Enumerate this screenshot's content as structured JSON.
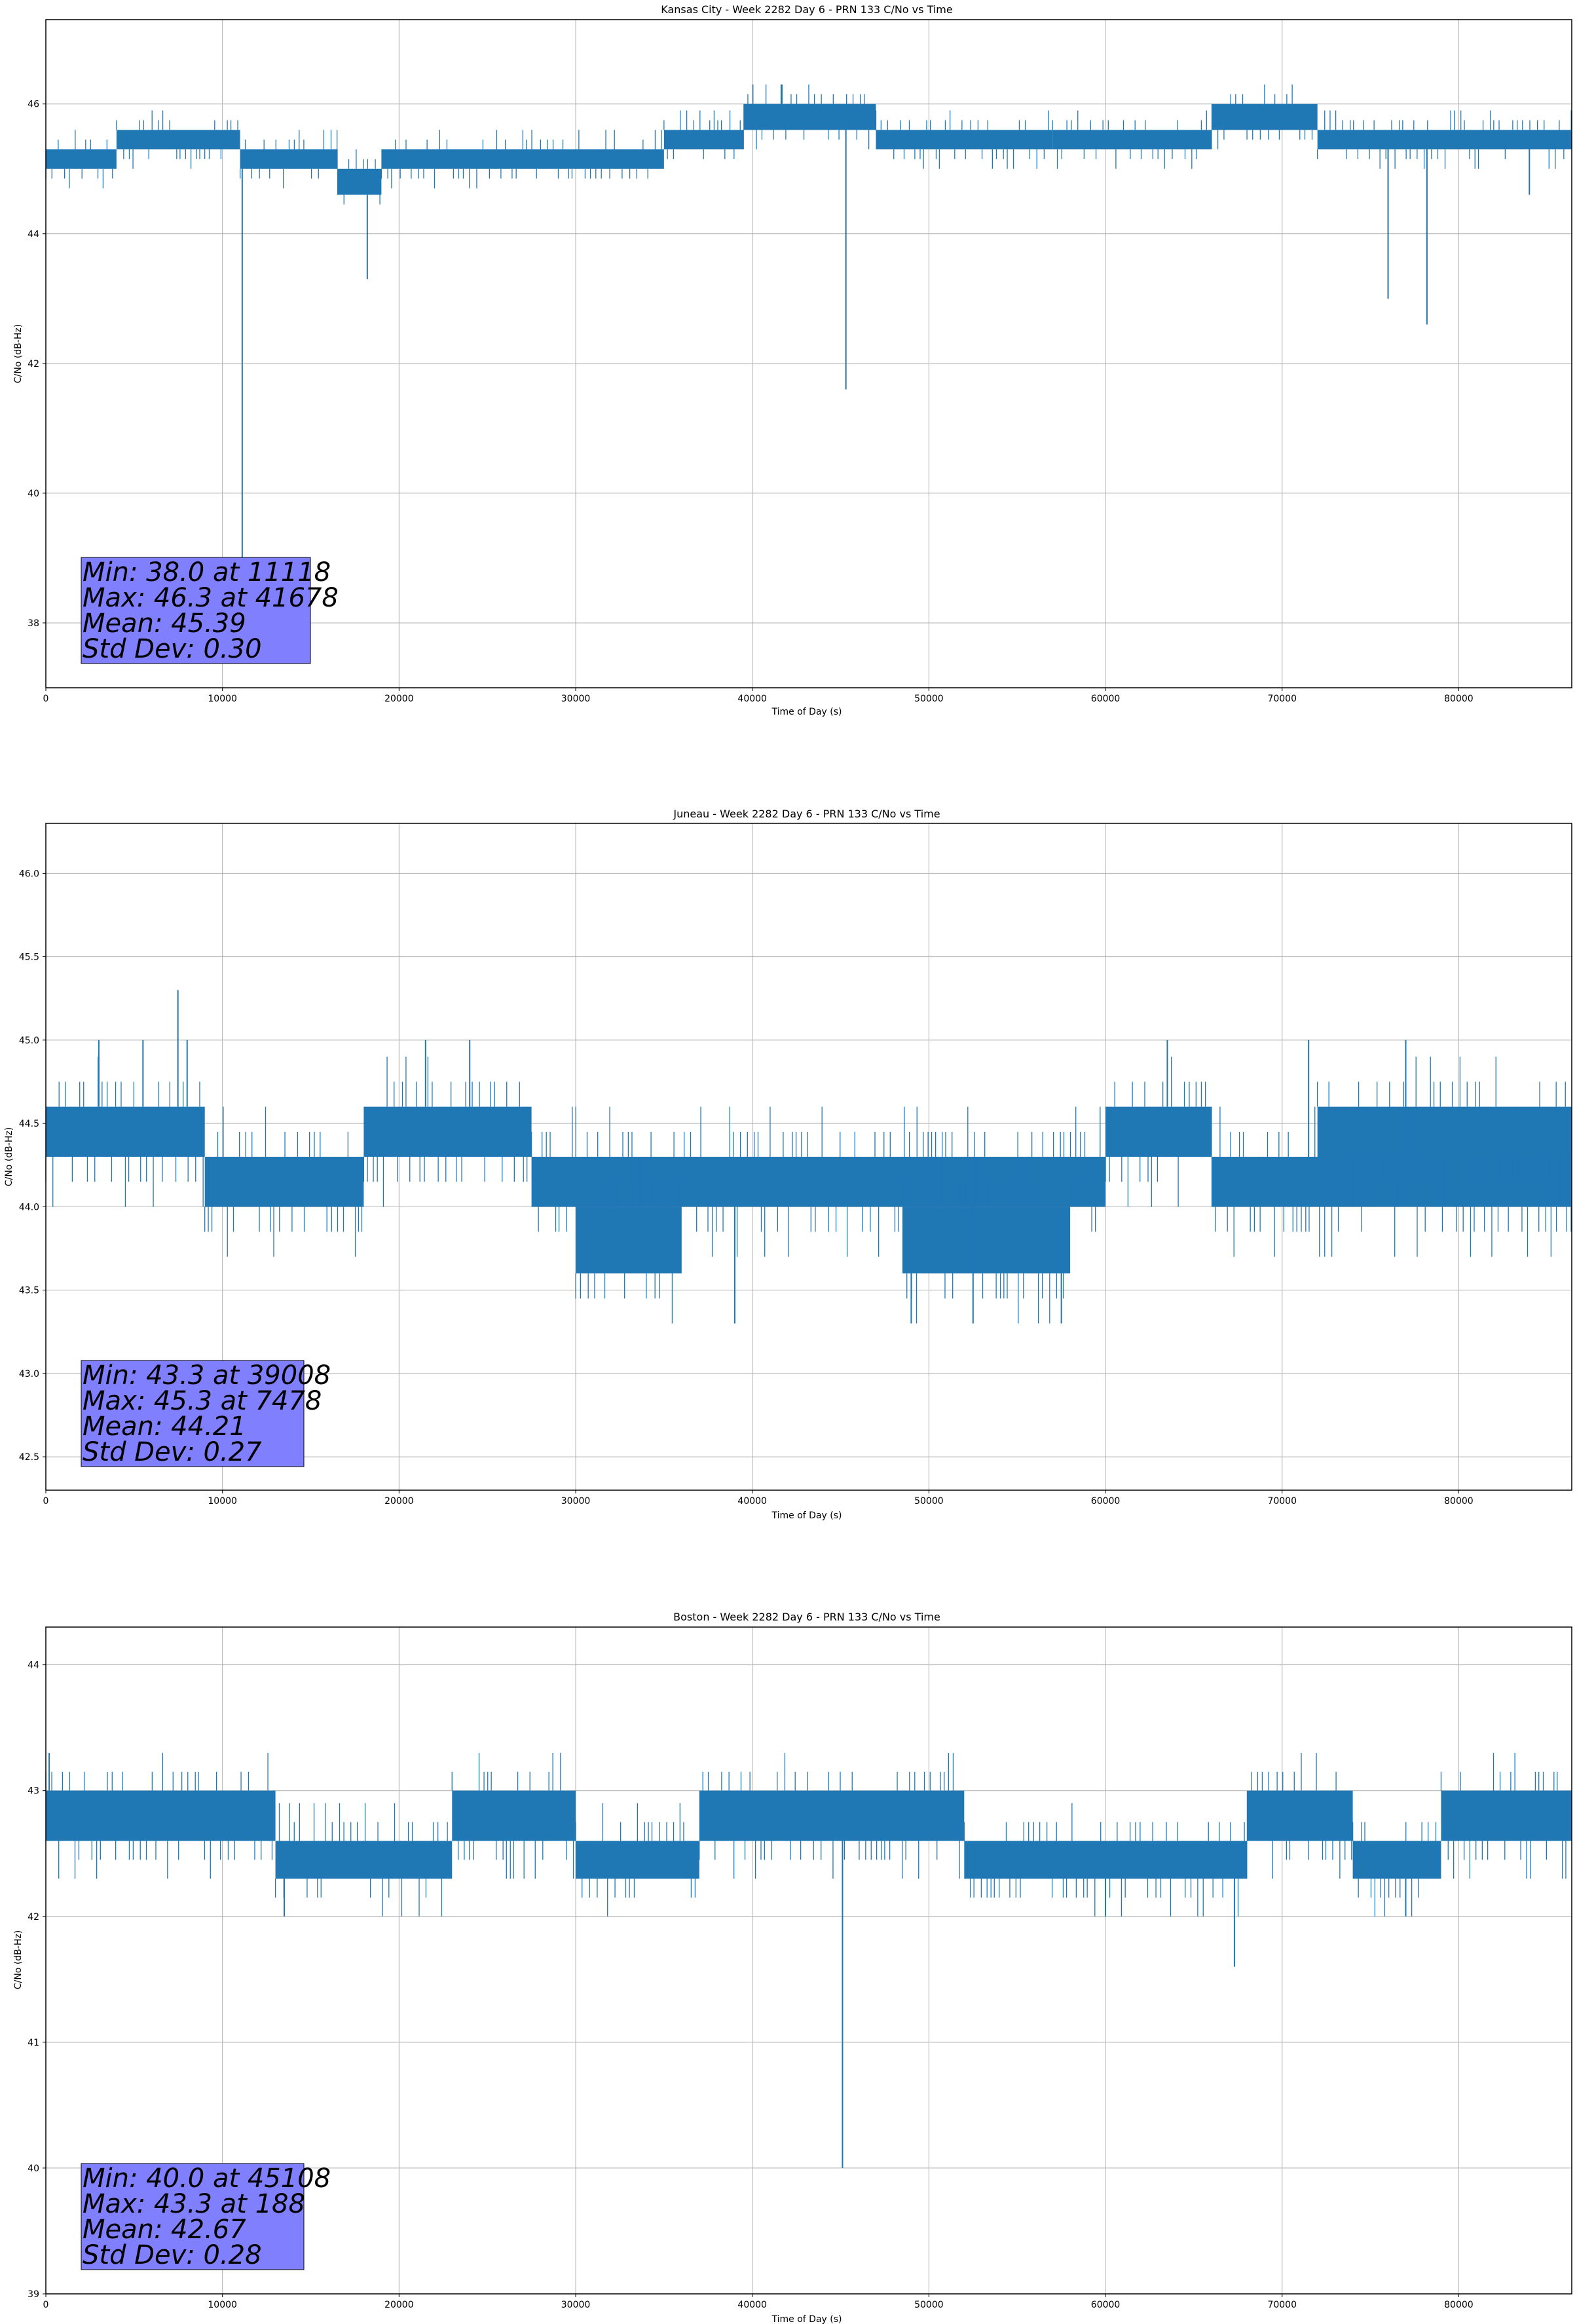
{
  "figure": {
    "colors": {
      "line": "#1f77b4",
      "grid": "#b0b0b0",
      "axes": "#000000",
      "stats_box_fill": "#8080ff",
      "background": "#ffffff"
    }
  },
  "chart_data": [
    {
      "type": "line",
      "title": "Kansas City - Week 2282 Day 6 - PRN 133 C/No vs Time",
      "xlabel": "Time of Day (s)",
      "ylabel": "C/No (dB-Hz)",
      "xlim": [
        0,
        86400
      ],
      "ylim": [
        37.0,
        47.3
      ],
      "xticks": [
        0,
        10000,
        20000,
        30000,
        40000,
        50000,
        60000,
        70000,
        80000
      ],
      "xtick_labels": [
        "0",
        "10000",
        "20000",
        "30000",
        "40000",
        "50000",
        "60000",
        "70000",
        "80000"
      ],
      "yticks": [
        38,
        40,
        42,
        44,
        46
      ],
      "ytick_labels": [
        "38",
        "40",
        "42",
        "44",
        "46"
      ],
      "grid": true,
      "series": [
        {
          "name": "C/No",
          "band": [
            {
              "x0": 0,
              "x1": 4000,
              "lo": 45.0,
              "hi": 45.3
            },
            {
              "x0": 4000,
              "x1": 11000,
              "lo": 45.3,
              "hi": 45.6
            },
            {
              "x0": 11000,
              "x1": 16500,
              "lo": 45.0,
              "hi": 45.3
            },
            {
              "x0": 16500,
              "x1": 19000,
              "lo": 44.6,
              "hi": 45.0
            },
            {
              "x0": 19000,
              "x1": 35000,
              "lo": 45.0,
              "hi": 45.3
            },
            {
              "x0": 35000,
              "x1": 39500,
              "lo": 45.3,
              "hi": 45.6
            },
            {
              "x0": 39500,
              "x1": 47000,
              "lo": 45.6,
              "hi": 46.0
            },
            {
              "x0": 47000,
              "x1": 57000,
              "lo": 45.3,
              "hi": 45.6
            },
            {
              "x0": 57000,
              "x1": 66000,
              "lo": 45.3,
              "hi": 45.6
            },
            {
              "x0": 66000,
              "x1": 72000,
              "lo": 45.6,
              "hi": 46.0
            },
            {
              "x0": 72000,
              "x1": 86400,
              "lo": 45.3,
              "hi": 45.6
            }
          ],
          "spikes": [
            {
              "x": 11118,
              "y": 38.0
            },
            {
              "x": 18200,
              "y": 43.3
            },
            {
              "x": 41678,
              "y": 46.3
            },
            {
              "x": 45300,
              "y": 41.6
            },
            {
              "x": 76000,
              "y": 43.0
            },
            {
              "x": 78200,
              "y": 42.6
            },
            {
              "x": 84000,
              "y": 44.6
            }
          ]
        }
      ],
      "stats": {
        "min": "Min: 38.0 at 11118",
        "max": "Max: 46.3 at 41678",
        "mean": "Mean: 45.39",
        "std": "Std Dev: 0.30"
      }
    },
    {
      "type": "line",
      "title": "Juneau - Week 2282 Day 6 - PRN 133 C/No vs Time",
      "xlabel": "Time of Day (s)",
      "ylabel": "C/No (dB-Hz)",
      "xlim": [
        0,
        86400
      ],
      "ylim": [
        42.3,
        46.3
      ],
      "xticks": [
        0,
        10000,
        20000,
        30000,
        40000,
        50000,
        60000,
        70000,
        80000
      ],
      "xtick_labels": [
        "0",
        "10000",
        "20000",
        "30000",
        "40000",
        "50000",
        "60000",
        "70000",
        "80000"
      ],
      "yticks": [
        42.5,
        43.0,
        43.5,
        44.0,
        44.5,
        45.0,
        45.5,
        46.0
      ],
      "ytick_labels": [
        "42.5",
        "43.0",
        "43.5",
        "44.0",
        "44.5",
        "45.0",
        "45.5",
        "46.0"
      ],
      "grid": true,
      "series": [
        {
          "name": "C/No",
          "band": [
            {
              "x0": 0,
              "x1": 9000,
              "lo": 44.3,
              "hi": 44.6
            },
            {
              "x0": 9000,
              "x1": 18000,
              "lo": 44.0,
              "hi": 44.3
            },
            {
              "x0": 18000,
              "x1": 27500,
              "lo": 44.3,
              "hi": 44.6
            },
            {
              "x0": 27500,
              "x1": 60000,
              "lo": 44.0,
              "hi": 44.3
            },
            {
              "x0": 30000,
              "x1": 36000,
              "lo": 43.6,
              "hi": 44.0
            },
            {
              "x0": 48500,
              "x1": 58000,
              "lo": 43.6,
              "hi": 44.0
            },
            {
              "x0": 60000,
              "x1": 66000,
              "lo": 44.3,
              "hi": 44.6
            },
            {
              "x0": 66000,
              "x1": 86400,
              "lo": 44.0,
              "hi": 44.3
            },
            {
              "x0": 72000,
              "x1": 86400,
              "lo": 44.3,
              "hi": 44.6
            }
          ],
          "spikes": [
            {
              "x": 7478,
              "y": 45.3
            },
            {
              "x": 39008,
              "y": 43.3
            },
            {
              "x": 49000,
              "y": 43.3
            },
            {
              "x": 52500,
              "y": 43.3
            },
            {
              "x": 57500,
              "y": 43.3
            },
            {
              "x": 3000,
              "y": 45.0
            },
            {
              "x": 5500,
              "y": 45.0
            },
            {
              "x": 8000,
              "y": 45.0
            },
            {
              "x": 21500,
              "y": 45.0
            },
            {
              "x": 24000,
              "y": 45.0
            },
            {
              "x": 63500,
              "y": 45.0
            },
            {
              "x": 71500,
              "y": 45.0
            },
            {
              "x": 77000,
              "y": 45.0
            }
          ]
        }
      ],
      "stats": {
        "min": "Min: 43.3 at 39008",
        "max": "Max: 45.3 at 7478",
        "mean": "Mean: 44.21",
        "std": "Std Dev: 0.27"
      }
    },
    {
      "type": "line",
      "title": "Boston - Week 2282 Day 6 - PRN 133 C/No vs Time",
      "xlabel": "Time of Day (s)",
      "ylabel": "C/No (dB-Hz)",
      "xlim": [
        0,
        86400
      ],
      "ylim": [
        39.0,
        44.3
      ],
      "xticks": [
        0,
        10000,
        20000,
        30000,
        40000,
        50000,
        60000,
        70000,
        80000
      ],
      "xtick_labels": [
        "0",
        "10000",
        "20000",
        "30000",
        "40000",
        "50000",
        "60000",
        "70000",
        "80000"
      ],
      "yticks": [
        39,
        40,
        41,
        42,
        43,
        44
      ],
      "ytick_labels": [
        "39",
        "40",
        "41",
        "42",
        "43",
        "44"
      ],
      "grid": true,
      "series": [
        {
          "name": "C/No",
          "band": [
            {
              "x0": 0,
              "x1": 13000,
              "lo": 42.6,
              "hi": 43.0
            },
            {
              "x0": 13000,
              "x1": 23000,
              "lo": 42.3,
              "hi": 42.6
            },
            {
              "x0": 23000,
              "x1": 30000,
              "lo": 42.6,
              "hi": 43.0
            },
            {
              "x0": 30000,
              "x1": 37000,
              "lo": 42.3,
              "hi": 42.6
            },
            {
              "x0": 37000,
              "x1": 52000,
              "lo": 42.6,
              "hi": 43.0
            },
            {
              "x0": 52000,
              "x1": 68000,
              "lo": 42.3,
              "hi": 42.6
            },
            {
              "x0": 68000,
              "x1": 74000,
              "lo": 42.6,
              "hi": 43.0
            },
            {
              "x0": 74000,
              "x1": 79000,
              "lo": 42.3,
              "hi": 42.6
            },
            {
              "x0": 79000,
              "x1": 86400,
              "lo": 42.6,
              "hi": 43.0
            }
          ],
          "spikes": [
            {
              "x": 45108,
              "y": 40.0
            },
            {
              "x": 188,
              "y": 43.3
            },
            {
              "x": 67300,
              "y": 41.6
            },
            {
              "x": 13500,
              "y": 42.0
            },
            {
              "x": 60000,
              "y": 42.0
            },
            {
              "x": 77000,
              "y": 42.0
            }
          ]
        }
      ],
      "stats": {
        "min": "Min: 40.0 at 45108",
        "max": "Max: 43.3 at 188",
        "mean": "Mean: 42.67",
        "std": "Std Dev: 0.28"
      }
    }
  ]
}
